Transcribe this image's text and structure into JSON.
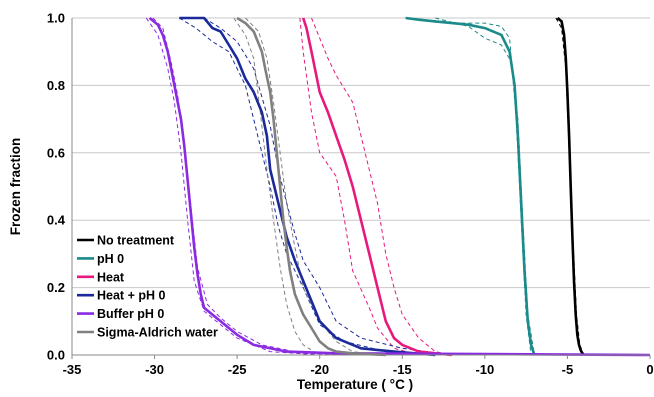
{
  "chart_data": {
    "type": "line",
    "title": "",
    "xlabel": "Temperature ( °C )",
    "ylabel": "Frozen fraction",
    "xlim": [
      -35,
      0
    ],
    "ylim": [
      0,
      1
    ],
    "xticks": [
      -35,
      -30,
      -25,
      -20,
      -15,
      -10,
      -5,
      0
    ],
    "xtick_labels": [
      "-35",
      "-30",
      "-25",
      "-20",
      "-15",
      "-10",
      "-5",
      "0"
    ],
    "yticks": [
      0,
      0.2,
      0.4,
      0.6,
      0.8,
      1.0
    ],
    "ytick_labels": [
      "0.0",
      "0.2",
      "0.4",
      "0.6",
      "0.8",
      "1.0"
    ],
    "grid": "horizontal",
    "legend_position": "bottom-left",
    "series": [
      {
        "name": "No treatment",
        "color": "#000000",
        "x": [
          -5.6,
          -5.35,
          -5.2,
          -5.1,
          -5.0,
          -4.9,
          -4.8,
          -4.7,
          -4.6,
          -4.5,
          -4.4,
          -4.3,
          -4.2,
          -4.1,
          -4.0
        ],
        "y": [
          1.0,
          0.99,
          0.95,
          0.88,
          0.78,
          0.65,
          0.5,
          0.35,
          0.22,
          0.12,
          0.06,
          0.03,
          0.015,
          0.005,
          0.0
        ],
        "bounds_upper": [
          [
            -5.7,
            1.0
          ],
          [
            -5.35,
            0.97
          ],
          [
            -5.1,
            0.85
          ],
          [
            -4.9,
            0.6
          ],
          [
            -4.7,
            0.33
          ],
          [
            -4.5,
            0.12
          ],
          [
            -4.3,
            0.03
          ],
          [
            -4.1,
            0.0
          ]
        ],
        "bounds_lower": [
          [
            -5.5,
            1.0
          ],
          [
            -5.25,
            0.97
          ],
          [
            -5.05,
            0.85
          ],
          [
            -4.85,
            0.6
          ],
          [
            -4.65,
            0.33
          ],
          [
            -4.45,
            0.12
          ],
          [
            -4.25,
            0.03
          ],
          [
            -4.0,
            0.0
          ]
        ]
      },
      {
        "name": "pH 0",
        "color": "#1A8A8A",
        "x": [
          -14.8,
          -14.0,
          -13.0,
          -12.0,
          -11.0,
          -10.0,
          -9.0,
          -8.5,
          -8.2,
          -8.0,
          -7.8,
          -7.6,
          -7.4,
          -7.2,
          -7.0
        ],
        "y": [
          1.0,
          0.995,
          0.99,
          0.985,
          0.98,
          0.97,
          0.95,
          0.9,
          0.8,
          0.65,
          0.45,
          0.25,
          0.1,
          0.03,
          0.0
        ],
        "bounds_upper": [
          [
            -14.8,
            1.0
          ],
          [
            -12.0,
            0.985
          ],
          [
            -10.0,
            0.985
          ],
          [
            -9.0,
            0.975
          ],
          [
            -8.5,
            0.94
          ],
          [
            -8.1,
            0.7
          ],
          [
            -7.8,
            0.4
          ],
          [
            -7.5,
            0.12
          ],
          [
            -7.2,
            0.0
          ]
        ],
        "bounds_lower": [
          [
            -13.0,
            1.0
          ],
          [
            -11.0,
            0.975
          ],
          [
            -10.0,
            0.94
          ],
          [
            -9.0,
            0.92
          ],
          [
            -8.4,
            0.87
          ],
          [
            -8.0,
            0.7
          ],
          [
            -7.7,
            0.4
          ],
          [
            -7.4,
            0.12
          ],
          [
            -7.0,
            0.0
          ]
        ]
      },
      {
        "name": "Heat",
        "color": "#E8197D",
        "x": [
          -21.0,
          -20.8,
          -20.5,
          -20.0,
          -19.5,
          -19.0,
          -18.5,
          -18.0,
          -17.5,
          -17.0,
          -16.5,
          -16.0,
          -15.5,
          -15.0,
          -14.0,
          -12.0
        ],
        "y": [
          1.0,
          0.97,
          0.9,
          0.78,
          0.72,
          0.65,
          0.58,
          0.5,
          0.4,
          0.3,
          0.2,
          0.1,
          0.05,
          0.03,
          0.01,
          0.0
        ],
        "bounds_upper": [
          [
            -21.2,
            1.0
          ],
          [
            -21.0,
            0.9
          ],
          [
            -20.5,
            0.72
          ],
          [
            -20.0,
            0.6
          ],
          [
            -19.0,
            0.53
          ],
          [
            -18.5,
            0.4
          ],
          [
            -18.0,
            0.25
          ],
          [
            -17.0,
            0.14
          ],
          [
            -16.5,
            0.08
          ],
          [
            -15.5,
            0.02
          ],
          [
            -14.0,
            0.0
          ]
        ],
        "bounds_lower": [
          [
            -20.5,
            1.0
          ],
          [
            -19.5,
            0.88
          ],
          [
            -19.0,
            0.83
          ],
          [
            -18.0,
            0.75
          ],
          [
            -17.5,
            0.65
          ],
          [
            -16.5,
            0.45
          ],
          [
            -16.0,
            0.3
          ],
          [
            -15.5,
            0.2
          ],
          [
            -15.0,
            0.12
          ],
          [
            -14.0,
            0.05
          ],
          [
            -13.0,
            0.01
          ],
          [
            -12.0,
            0.0
          ]
        ]
      },
      {
        "name": "Heat + pH 0",
        "color": "#1A2A9A",
        "x": [
          -28.5,
          -27.0,
          -26.5,
          -26.0,
          -25.5,
          -25.0,
          -24.5,
          -24.0,
          -23.5,
          -23.2,
          -23.0,
          -22.5,
          -22.0,
          -21.5,
          -21.0,
          -20.5,
          -20.0,
          -19.0,
          -17.5,
          -15.5,
          -13.0
        ],
        "y": [
          1.0,
          1.0,
          0.97,
          0.96,
          0.92,
          0.88,
          0.82,
          0.78,
          0.72,
          0.65,
          0.55,
          0.45,
          0.35,
          0.28,
          0.22,
          0.16,
          0.1,
          0.05,
          0.02,
          0.01,
          0.0
        ],
        "bounds_upper": [
          [
            -28.5,
            1.0
          ],
          [
            -27.5,
            0.97
          ],
          [
            -26.5,
            0.93
          ],
          [
            -25.5,
            0.9
          ],
          [
            -24.5,
            0.8
          ],
          [
            -23.5,
            0.6
          ],
          [
            -23.0,
            0.5
          ],
          [
            -22.5,
            0.38
          ],
          [
            -22.0,
            0.3
          ],
          [
            -21.0,
            0.2
          ],
          [
            -20.0,
            0.09
          ],
          [
            -18.5,
            0.04
          ],
          [
            -16.0,
            0.01
          ],
          [
            -14.0,
            0.0
          ]
        ],
        "bounds_lower": [
          [
            -27.0,
            1.0
          ],
          [
            -26.0,
            0.97
          ],
          [
            -25.0,
            0.93
          ],
          [
            -24.0,
            0.85
          ],
          [
            -23.0,
            0.68
          ],
          [
            -22.5,
            0.55
          ],
          [
            -22.0,
            0.45
          ],
          [
            -21.5,
            0.36
          ],
          [
            -21.0,
            0.28
          ],
          [
            -20.0,
            0.2
          ],
          [
            -19.0,
            0.1
          ],
          [
            -17.5,
            0.05
          ],
          [
            -15.0,
            0.02
          ],
          [
            -12.0,
            0.0
          ]
        ]
      },
      {
        "name": "Buffer pH 0",
        "color": "#8A2BE2",
        "x": [
          -30.3,
          -29.8,
          -29.5,
          -29.2,
          -29.0,
          -28.8,
          -28.6,
          -28.4,
          -28.2,
          -28.0,
          -27.8,
          -27.6,
          -27.4,
          -27.2,
          -27.0,
          -26.5,
          -26.0,
          -25.0,
          -24.0,
          -22.0,
          -19.0,
          -10.0,
          0.0
        ],
        "y": [
          1.0,
          0.98,
          0.95,
          0.9,
          0.85,
          0.8,
          0.75,
          0.7,
          0.62,
          0.52,
          0.42,
          0.32,
          0.24,
          0.18,
          0.14,
          0.12,
          0.1,
          0.06,
          0.03,
          0.01,
          0.005,
          0.003,
          0.0
        ],
        "bounds_upper": [
          [
            -30.5,
            1.0
          ],
          [
            -29.8,
            0.95
          ],
          [
            -29.2,
            0.85
          ],
          [
            -28.8,
            0.75
          ],
          [
            -28.4,
            0.6
          ],
          [
            -28.0,
            0.4
          ],
          [
            -27.6,
            0.22
          ],
          [
            -27.0,
            0.13
          ],
          [
            -26.0,
            0.09
          ],
          [
            -25.0,
            0.05
          ],
          [
            -23.0,
            0.01
          ],
          [
            -20.0,
            0.0
          ]
        ],
        "bounds_lower": [
          [
            -30.1,
            1.0
          ],
          [
            -29.5,
            0.97
          ],
          [
            -29.0,
            0.87
          ],
          [
            -28.6,
            0.77
          ],
          [
            -28.2,
            0.62
          ],
          [
            -27.8,
            0.44
          ],
          [
            -27.4,
            0.26
          ],
          [
            -26.8,
            0.15
          ],
          [
            -26.0,
            0.11
          ],
          [
            -25.0,
            0.07
          ],
          [
            -23.5,
            0.03
          ],
          [
            -21.0,
            0.005
          ],
          [
            -18.0,
            0.0
          ]
        ]
      },
      {
        "name": "Sigma-Aldrich water",
        "color": "#808080",
        "x": [
          -25.0,
          -24.5,
          -24.0,
          -23.5,
          -23.3,
          -23.0,
          -22.8,
          -22.6,
          -22.4,
          -22.2,
          -22.0,
          -21.8,
          -21.5,
          -21.0,
          -20.5,
          -20.0,
          -19.5,
          -19.0,
          -18.0,
          -16.0
        ],
        "y": [
          1.0,
          0.985,
          0.96,
          0.9,
          0.85,
          0.78,
          0.7,
          0.6,
          0.5,
          0.4,
          0.32,
          0.25,
          0.18,
          0.12,
          0.08,
          0.04,
          0.02,
          0.01,
          0.005,
          0.0
        ],
        "bounds_upper": [
          [
            -25.2,
            1.0
          ],
          [
            -24.5,
            0.95
          ],
          [
            -24.0,
            0.88
          ],
          [
            -23.6,
            0.72
          ],
          [
            -23.2,
            0.55
          ],
          [
            -22.8,
            0.4
          ],
          [
            -22.4,
            0.26
          ],
          [
            -22.0,
            0.15
          ],
          [
            -21.5,
            0.07
          ],
          [
            -21.0,
            0.03
          ],
          [
            -20.0,
            0.0
          ]
        ],
        "bounds_lower": [
          [
            -24.5,
            1.0
          ],
          [
            -23.7,
            0.96
          ],
          [
            -23.2,
            0.88
          ],
          [
            -22.8,
            0.75
          ],
          [
            -22.4,
            0.6
          ],
          [
            -22.0,
            0.45
          ],
          [
            -21.5,
            0.32
          ],
          [
            -21.0,
            0.2
          ],
          [
            -20.0,
            0.1
          ],
          [
            -19.0,
            0.04
          ],
          [
            -18.0,
            0.01
          ],
          [
            -16.5,
            0.0
          ]
        ]
      }
    ]
  }
}
